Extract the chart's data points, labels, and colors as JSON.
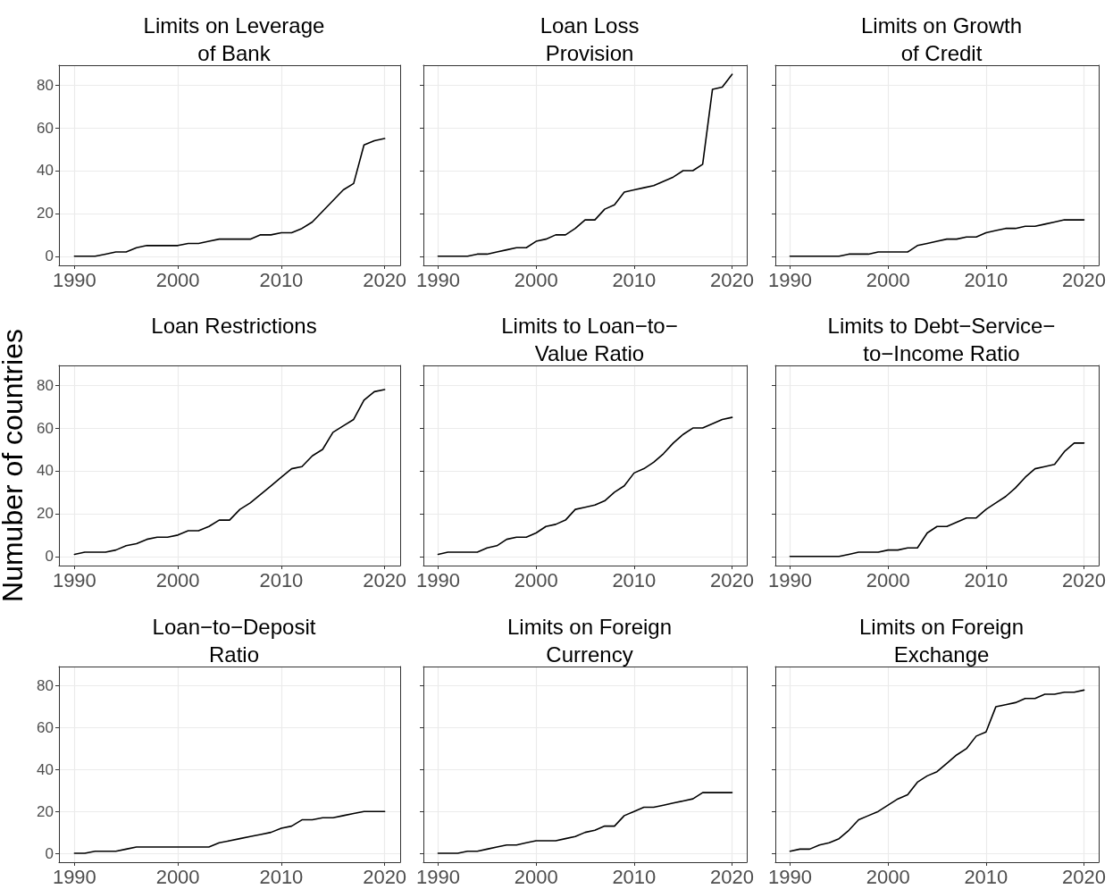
{
  "chart_data": [
    {
      "type": "line",
      "title": "Limits on Leverage\nof Bank",
      "x": [
        1990,
        1991,
        1992,
        1993,
        1994,
        1995,
        1996,
        1997,
        1998,
        1999,
        2000,
        2001,
        2002,
        2003,
        2004,
        2005,
        2006,
        2007,
        2008,
        2009,
        2010,
        2011,
        2012,
        2013,
        2014,
        2015,
        2016,
        2017,
        2018,
        2019,
        2020
      ],
      "series": [
        {
          "color": "#000000",
          "values": [
            0,
            0,
            0,
            1,
            2,
            2,
            4,
            5,
            5,
            5,
            5,
            6,
            6,
            7,
            8,
            8,
            8,
            8,
            10,
            10,
            11,
            11,
            13,
            16,
            21,
            26,
            31,
            34,
            52,
            54,
            55
          ]
        }
      ],
      "xlim": [
        1988.5,
        2021.5
      ],
      "xticks": [
        1990,
        2000,
        2010,
        2020
      ],
      "ylim": [
        -4.25,
        89.25
      ],
      "yticks": [
        0,
        20,
        40,
        60,
        80
      ],
      "grid": true,
      "marker": "none",
      "line_style": "solid"
    },
    {
      "type": "line",
      "title": "Loan Loss\nProvision",
      "x": [
        1990,
        1991,
        1992,
        1993,
        1994,
        1995,
        1996,
        1997,
        1998,
        1999,
        2000,
        2001,
        2002,
        2003,
        2004,
        2005,
        2006,
        2007,
        2008,
        2009,
        2010,
        2011,
        2012,
        2013,
        2014,
        2015,
        2016,
        2017,
        2018,
        2019,
        2020
      ],
      "series": [
        {
          "color": "#000000",
          "values": [
            0,
            0,
            0,
            0,
            1,
            1,
            2,
            3,
            4,
            4,
            7,
            8,
            10,
            10,
            13,
            17,
            17,
            22,
            24,
            30,
            31,
            32,
            33,
            35,
            37,
            40,
            40,
            43,
            78,
            79,
            85
          ]
        }
      ],
      "xlim": [
        1988.5,
        2021.5
      ],
      "xticks": [
        1990,
        2000,
        2010,
        2020
      ],
      "ylim": [
        -4.25,
        89.25
      ],
      "yticks": [
        0,
        20,
        40,
        60,
        80
      ],
      "grid": true,
      "marker": "none",
      "line_style": "solid",
      "tick_labels": "x"
    },
    {
      "type": "line",
      "title": "Limits on Growth\nof Credit",
      "x": [
        1990,
        1991,
        1992,
        1993,
        1994,
        1995,
        1996,
        1997,
        1998,
        1999,
        2000,
        2001,
        2002,
        2003,
        2004,
        2005,
        2006,
        2007,
        2008,
        2009,
        2010,
        2011,
        2012,
        2013,
        2014,
        2015,
        2016,
        2017,
        2018,
        2019,
        2020
      ],
      "series": [
        {
          "color": "#000000",
          "values": [
            0,
            0,
            0,
            0,
            0,
            0,
            1,
            1,
            1,
            2,
            2,
            2,
            2,
            5,
            6,
            7,
            8,
            8,
            9,
            9,
            11,
            12,
            13,
            13,
            14,
            14,
            15,
            16,
            17,
            17,
            17
          ]
        }
      ],
      "xlim": [
        1988.5,
        2021.5
      ],
      "xticks": [
        1990,
        2000,
        2010,
        2020
      ],
      "ylim": [
        -4.25,
        89.25
      ],
      "yticks": [
        0,
        20,
        40,
        60,
        80
      ],
      "grid": true,
      "marker": "none",
      "line_style": "solid",
      "tick_labels": "x"
    },
    {
      "type": "line",
      "title": "Loan Restrictions",
      "ylabel": "Numuber of countries",
      "x": [
        1990,
        1991,
        1992,
        1993,
        1994,
        1995,
        1996,
        1997,
        1998,
        1999,
        2000,
        2001,
        2002,
        2003,
        2004,
        2005,
        2006,
        2007,
        2008,
        2009,
        2010,
        2011,
        2012,
        2013,
        2014,
        2015,
        2016,
        2017,
        2018,
        2019,
        2020
      ],
      "series": [
        {
          "color": "#000000",
          "values": [
            1,
            2,
            2,
            2,
            3,
            5,
            6,
            8,
            9,
            9,
            10,
            12,
            12,
            14,
            17,
            17,
            22,
            25,
            29,
            33,
            37,
            41,
            42,
            47,
            50,
            58,
            61,
            64,
            73,
            77,
            78
          ]
        }
      ],
      "xlim": [
        1988.5,
        2021.5
      ],
      "xticks": [
        1990,
        2000,
        2010,
        2020
      ],
      "ylim": [
        -4.25,
        89.25
      ],
      "yticks": [
        0,
        20,
        40,
        60,
        80
      ],
      "grid": true,
      "marker": "none",
      "line_style": "solid"
    },
    {
      "type": "line",
      "title": "Limits to Loan−to−\nValue Ratio",
      "x": [
        1990,
        1991,
        1992,
        1993,
        1994,
        1995,
        1996,
        1997,
        1998,
        1999,
        2000,
        2001,
        2002,
        2003,
        2004,
        2005,
        2006,
        2007,
        2008,
        2009,
        2010,
        2011,
        2012,
        2013,
        2014,
        2015,
        2016,
        2017,
        2018,
        2019,
        2020
      ],
      "series": [
        {
          "color": "#000000",
          "values": [
            1,
            2,
            2,
            2,
            2,
            4,
            5,
            8,
            9,
            9,
            11,
            14,
            15,
            17,
            22,
            23,
            24,
            26,
            30,
            33,
            39,
            41,
            44,
            48,
            53,
            57,
            60,
            60,
            62,
            64,
            65
          ]
        }
      ],
      "xlim": [
        1988.5,
        2021.5
      ],
      "xticks": [
        1990,
        2000,
        2010,
        2020
      ],
      "ylim": [
        -4.25,
        89.25
      ],
      "yticks": [
        0,
        20,
        40,
        60,
        80
      ],
      "grid": true,
      "marker": "none",
      "line_style": "solid",
      "tick_labels": "x"
    },
    {
      "type": "line",
      "title": "Limits to Debt−Service−\nto−Income Ratio",
      "x": [
        1990,
        1991,
        1992,
        1993,
        1994,
        1995,
        1996,
        1997,
        1998,
        1999,
        2000,
        2001,
        2002,
        2003,
        2004,
        2005,
        2006,
        2007,
        2008,
        2009,
        2010,
        2011,
        2012,
        2013,
        2014,
        2015,
        2016,
        2017,
        2018,
        2019,
        2020
      ],
      "series": [
        {
          "color": "#000000",
          "values": [
            0,
            0,
            0,
            0,
            0,
            0,
            1,
            2,
            2,
            2,
            3,
            3,
            4,
            4,
            11,
            14,
            14,
            16,
            18,
            18,
            22,
            25,
            28,
            32,
            37,
            41,
            42,
            43,
            49,
            53,
            53
          ]
        }
      ],
      "xlim": [
        1988.5,
        2021.5
      ],
      "xticks": [
        1990,
        2000,
        2010,
        2020
      ],
      "ylim": [
        -4.25,
        89.25
      ],
      "yticks": [
        0,
        20,
        40,
        60,
        80
      ],
      "grid": true,
      "marker": "none",
      "line_style": "solid",
      "tick_labels": "x"
    },
    {
      "type": "line",
      "title": "Loan−to−Deposit\nRatio",
      "x": [
        1990,
        1991,
        1992,
        1993,
        1994,
        1995,
        1996,
        1997,
        1998,
        1999,
        2000,
        2001,
        2002,
        2003,
        2004,
        2005,
        2006,
        2007,
        2008,
        2009,
        2010,
        2011,
        2012,
        2013,
        2014,
        2015,
        2016,
        2017,
        2018,
        2019,
        2020
      ],
      "series": [
        {
          "color": "#000000",
          "values": [
            0,
            0,
            1,
            1,
            1,
            2,
            3,
            3,
            3,
            3,
            3,
            3,
            3,
            3,
            5,
            6,
            7,
            8,
            9,
            10,
            12,
            13,
            16,
            16,
            17,
            17,
            18,
            19,
            20,
            20,
            20
          ]
        }
      ],
      "xlim": [
        1988.5,
        2021.5
      ],
      "xticks": [
        1990,
        2000,
        2010,
        2020
      ],
      "ylim": [
        -4.25,
        89.25
      ],
      "yticks": [
        0,
        20,
        40,
        60,
        80
      ],
      "grid": true,
      "marker": "none",
      "line_style": "solid"
    },
    {
      "type": "line",
      "title": "Limits on Foreign\nCurrency",
      "x": [
        1990,
        1991,
        1992,
        1993,
        1994,
        1995,
        1996,
        1997,
        1998,
        1999,
        2000,
        2001,
        2002,
        2003,
        2004,
        2005,
        2006,
        2007,
        2008,
        2009,
        2010,
        2011,
        2012,
        2013,
        2014,
        2015,
        2016,
        2017,
        2018,
        2019,
        2020
      ],
      "series": [
        {
          "color": "#000000",
          "values": [
            0,
            0,
            0,
            1,
            1,
            2,
            3,
            4,
            4,
            5,
            6,
            6,
            6,
            7,
            8,
            10,
            11,
            13,
            13,
            18,
            20,
            22,
            22,
            23,
            24,
            25,
            26,
            29,
            29,
            29,
            29
          ]
        }
      ],
      "xlim": [
        1988.5,
        2021.5
      ],
      "xticks": [
        1990,
        2000,
        2010,
        2020
      ],
      "ylim": [
        -4.25,
        89.25
      ],
      "yticks": [
        0,
        20,
        40,
        60,
        80
      ],
      "grid": true,
      "marker": "none",
      "line_style": "solid",
      "tick_labels": "x"
    },
    {
      "type": "line",
      "title": "Limits on Foreign\nExchange",
      "x": [
        1990,
        1991,
        1992,
        1993,
        1994,
        1995,
        1996,
        1997,
        1998,
        1999,
        2000,
        2001,
        2002,
        2003,
        2004,
        2005,
        2006,
        2007,
        2008,
        2009,
        2010,
        2011,
        2012,
        2013,
        2014,
        2015,
        2016,
        2017,
        2018,
        2019,
        2020
      ],
      "series": [
        {
          "color": "#000000",
          "values": [
            1,
            2,
            2,
            4,
            5,
            7,
            11,
            16,
            18,
            20,
            23,
            26,
            28,
            34,
            37,
            39,
            43,
            47,
            50,
            56,
            58,
            70,
            71,
            72,
            74,
            74,
            76,
            76,
            77,
            77,
            78
          ]
        }
      ],
      "xlim": [
        1988.5,
        2021.5
      ],
      "xticks": [
        1990,
        2000,
        2010,
        2020
      ],
      "ylim": [
        -4.25,
        89.25
      ],
      "yticks": [
        0,
        20,
        40,
        60,
        80
      ],
      "grid": true,
      "marker": "none",
      "line_style": "solid",
      "tick_labels": "x"
    }
  ]
}
